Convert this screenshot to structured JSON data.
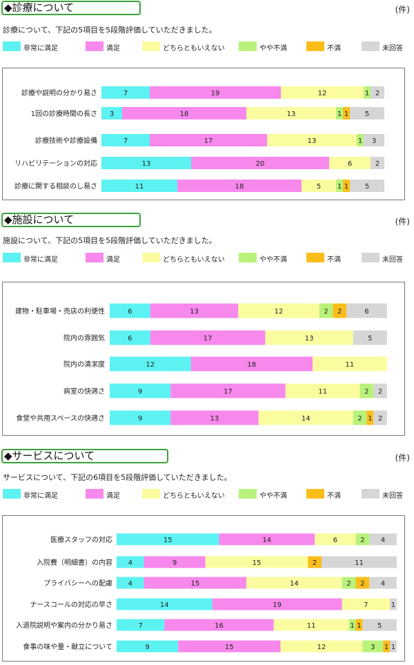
{
  "unit_label": "(件)",
  "colors": {
    "非常に満足": "#5df2f2",
    "満足": "#f788ec",
    "どちらともいえない": "#fbfca0",
    "やや不満": "#b9f27b",
    "不満": "#fbbd1a",
    "未回答": "#d6d6d6"
  },
  "sections": [
    {
      "title": "◆診療について",
      "description": "診療について、下記の5項目を5段階評価していただきました。",
      "legend": [
        "非常に満足",
        "満足",
        "どちらともいえない",
        "やや不満",
        "不満",
        "未回答"
      ]
    },
    {
      "title": "◆施設について",
      "description": "施設について、下記の5項目を5段階評価していただきました。",
      "legend": [
        "非常に満足",
        "満足",
        "どちらともいえない",
        "やや不満",
        "不満",
        "未回答"
      ]
    },
    {
      "title": "◆サービスについて",
      "description": "サービスについて、下記の6項目を5段階評価していただきました。",
      "legend": [
        "非常に満足",
        "満足",
        "どちらともいえない",
        "やや不満",
        "不満",
        "未回答"
      ]
    }
  ],
  "chart_data": [
    {
      "type": "bar",
      "stacked": true,
      "orientation": "horizontal",
      "categories": [
        "診療や説明の分かり易さ",
        "1回の診療時間の長さ",
        "診療技術や診療設備",
        "リハビリテーションの対応",
        "診療に関する相談のし易さ"
      ],
      "series": [
        {
          "name": "非常に満足",
          "values": [
            7,
            3,
            7,
            13,
            11
          ]
        },
        {
          "name": "満足",
          "values": [
            19,
            18,
            17,
            20,
            18
          ]
        },
        {
          "name": "どちらともいえない",
          "values": [
            12,
            13,
            13,
            6,
            5
          ]
        },
        {
          "name": "やや不満",
          "values": [
            1,
            1,
            1,
            0,
            1
          ]
        },
        {
          "name": "不満",
          "values": [
            0,
            1,
            0,
            0,
            1
          ]
        },
        {
          "name": "未回答",
          "values": [
            2,
            5,
            3,
            2,
            5
          ]
        }
      ]
    },
    {
      "type": "bar",
      "stacked": true,
      "orientation": "horizontal",
      "categories": [
        "建物・駐車場・売店の利便性",
        "院内の雰囲気",
        "院内の清潔度",
        "病室の快適さ",
        "食堂や共用スペースの快適さ"
      ],
      "series": [
        {
          "name": "非常に満足",
          "values": [
            6,
            6,
            12,
            9,
            9
          ]
        },
        {
          "name": "満足",
          "values": [
            13,
            17,
            18,
            17,
            13
          ]
        },
        {
          "name": "どちらともいえない",
          "values": [
            12,
            13,
            11,
            11,
            14
          ]
        },
        {
          "name": "やや不満",
          "values": [
            2,
            0,
            0,
            2,
            2
          ]
        },
        {
          "name": "不満",
          "values": [
            2,
            0,
            0,
            0,
            1
          ]
        },
        {
          "name": "未回答",
          "values": [
            6,
            5,
            0,
            2,
            2
          ]
        }
      ]
    },
    {
      "type": "bar",
      "stacked": true,
      "orientation": "horizontal",
      "categories": [
        "医療スタッフの対応",
        "入院費（明細書）の内容",
        "プライバシーへの配慮",
        "ナースコールの対応の早さ",
        "入退院説明や案内の分かり易さ",
        "食事の味や量・献立について"
      ],
      "series": [
        {
          "name": "非常に満足",
          "values": [
            15,
            4,
            4,
            14,
            7,
            9
          ]
        },
        {
          "name": "満足",
          "values": [
            14,
            9,
            15,
            19,
            16,
            15
          ]
        },
        {
          "name": "どちらともいえない",
          "values": [
            6,
            15,
            14,
            7,
            11,
            12
          ]
        },
        {
          "name": "やや不満",
          "values": [
            2,
            0,
            2,
            0,
            1,
            3
          ]
        },
        {
          "name": "不満",
          "values": [
            0,
            2,
            2,
            0,
            1,
            1
          ]
        },
        {
          "name": "未回答",
          "values": [
            4,
            11,
            4,
            1,
            5,
            1
          ]
        }
      ]
    }
  ]
}
